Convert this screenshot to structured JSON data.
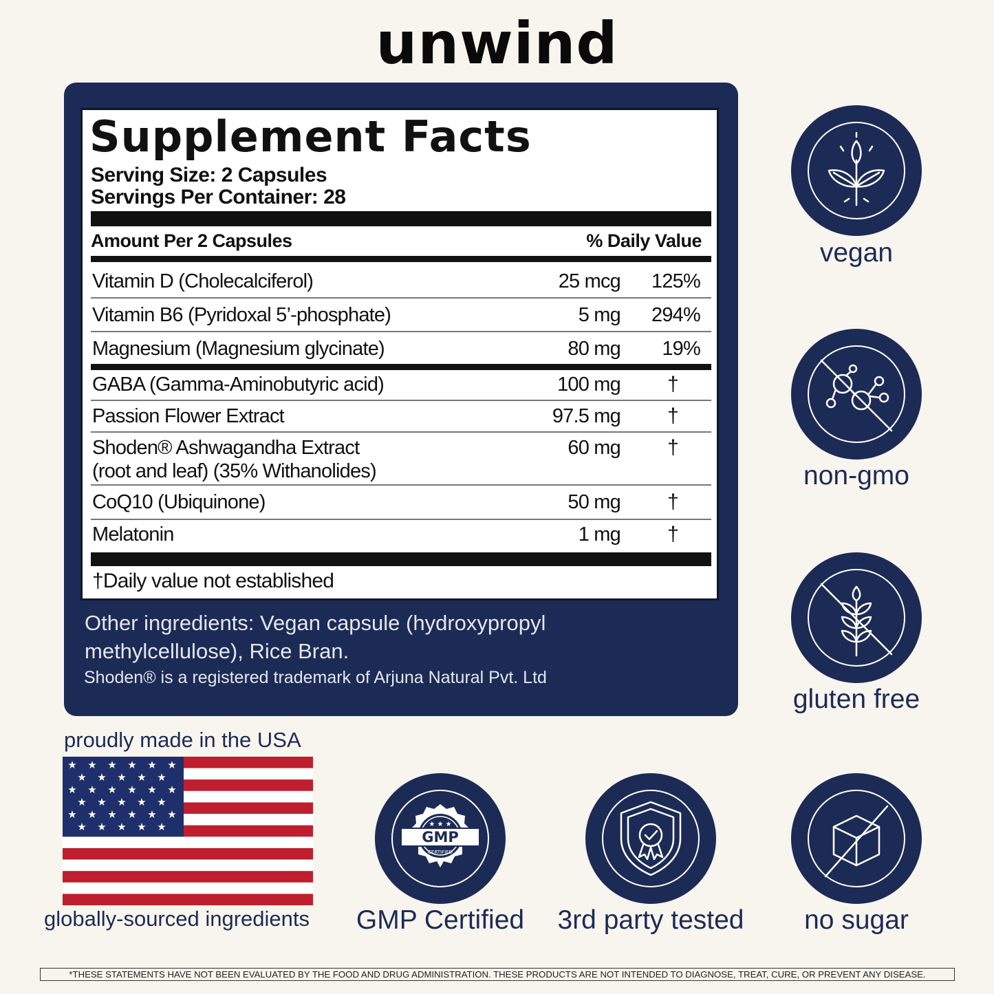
{
  "brand": "unwind",
  "facts": {
    "title": "Supplement Facts",
    "serving_size": "Serving Size: 2 Capsules",
    "servings_per_container": "Servings Per Container: 28",
    "amount_header": "Amount Per 2 Capsules",
    "dv_header": "% Daily Value",
    "rows": [
      {
        "name": "Vitamin D (Cholecalciferol)",
        "amount": "25 mcg",
        "dv": "125%"
      },
      {
        "name": "Vitamin B6 (Pyridoxal 5’-phosphate)",
        "amount": "5 mg",
        "dv": "294%"
      },
      {
        "name": "Magnesium (Magnesium glycinate)",
        "amount": "80 mg",
        "dv": "19%"
      },
      {
        "name": "GABA (Gamma-Aminobutyric acid)",
        "amount": "100 mg",
        "dv": "†"
      },
      {
        "name": "Passion Flower Extract",
        "amount": "97.5 mg",
        "dv": "†"
      },
      {
        "name": "Shoden® Ashwagandha Extract",
        "name2": "(root and leaf) (35% Withanolides)",
        "amount": "60 mg",
        "dv": "†"
      },
      {
        "name": "CoQ10 (Ubiquinone)",
        "amount": "50 mg",
        "dv": "†"
      },
      {
        "name": "Melatonin",
        "amount": "1 mg",
        "dv": "†"
      }
    ],
    "footnote": "†Daily value not established"
  },
  "other_ingredients": "Other ingredients:   Vegan capsule (hydroxypropyl methylcellulose), Rice Bran.",
  "trademark": "Shoden® is a registered trademark of Arjuna Natural Pvt. Ltd",
  "badges": {
    "vegan": "vegan",
    "non_gmo": "non-gmo",
    "gluten_free": "gluten free",
    "gmp": "GMP Certified",
    "third_party": "3rd party tested",
    "no_sugar": "no sugar",
    "gmp_seal_text": "GMP",
    "gmp_seal_sub": "CERTIFIED"
  },
  "usa": {
    "top": "proudly made in the USA",
    "bottom": "globally-sourced ingredients"
  },
  "disclaimer": "*THESE STATEMENTS HAVE NOT BEEN EVALUATED BY THE FOOD AND DRUG ADMINISTRATION. THESE PRODUCTS ARE NOT INTENDED TO DIAGNOSE, TREAT, CURE, OR PREVENT ANY DISEASE.",
  "icons": [
    "leaf-sprout-icon",
    "no-molecule-icon",
    "no-wheat-icon",
    "gmp-seal-icon",
    "shield-check-icon",
    "no-sugar-cube-icon",
    "usa-flag-icon"
  ],
  "colors": {
    "navy": "#1c2b55",
    "background": "#f8f5ee",
    "flag_red": "#bf1e2e",
    "flag_blue": "#1f2f6b"
  }
}
